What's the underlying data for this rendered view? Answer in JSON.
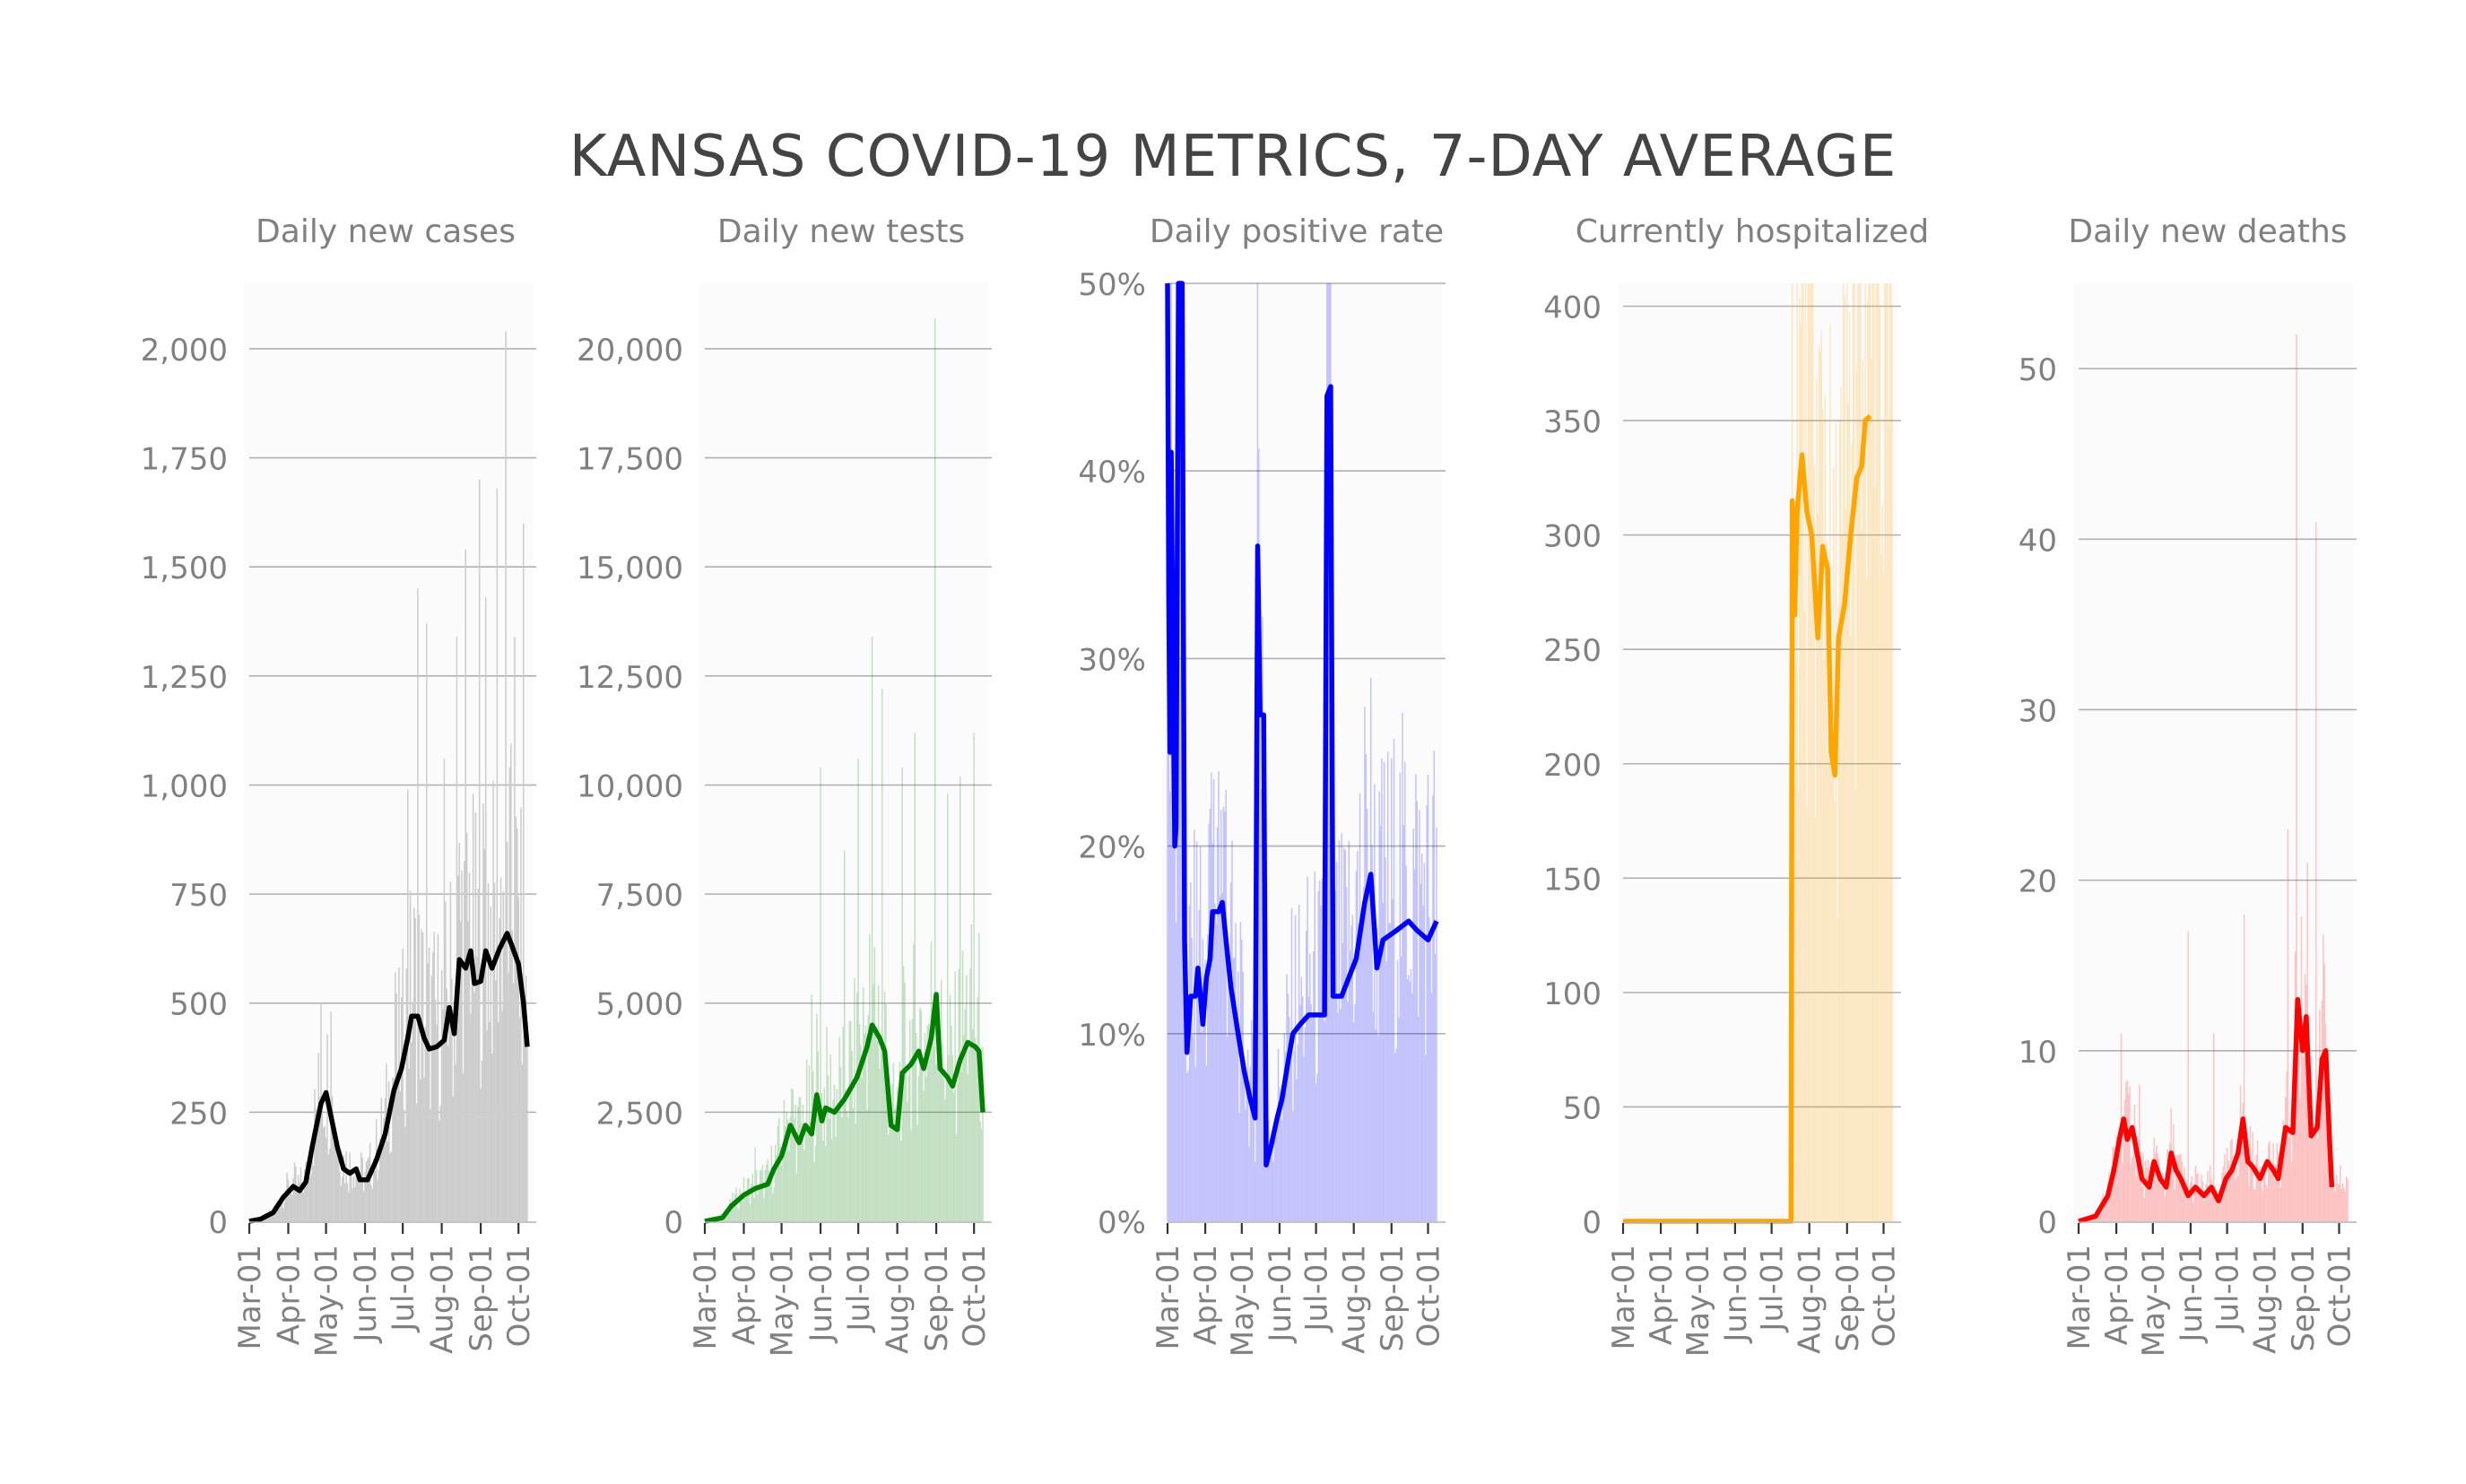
{
  "title": "KANSAS COVID-19 METRICS, 7-DAY AVERAGE",
  "colors": {
    "cases": "#000000",
    "tests": "#008000",
    "positive_rate": "#0000ff",
    "hospitalized": "#ffa500",
    "deaths": "#ff0000",
    "grid": "#b0b0b0",
    "text": "#808080",
    "title": "#444444"
  },
  "chart_data": [
    {
      "type": "bar+line",
      "title": "Daily new cases",
      "color": "#000000",
      "ylim": [
        0,
        2150
      ],
      "yticks": [
        0,
        250,
        500,
        750,
        1000,
        1250,
        1500,
        1750,
        2000
      ],
      "ytick_labels": [
        "0",
        "250",
        "500",
        "750",
        "1,000",
        "1,250",
        "1,500",
        "1,750",
        "2,000"
      ],
      "xticks": [
        "Mar-01",
        "Apr-01",
        "May-01",
        "Jun-01",
        "Jul-01",
        "Aug-01",
        "Sep-01",
        "Oct-01"
      ],
      "x_range": [
        "2020-03-01",
        "2020-10-08"
      ],
      "line": [
        [
          "2020-03-01",
          0
        ],
        [
          "2020-03-10",
          5
        ],
        [
          "2020-03-20",
          20
        ],
        [
          "2020-03-28",
          55
        ],
        [
          "2020-04-05",
          80
        ],
        [
          "2020-04-10",
          70
        ],
        [
          "2020-04-15",
          90
        ],
        [
          "2020-04-20",
          170
        ],
        [
          "2020-04-27",
          270
        ],
        [
          "2020-05-01",
          295
        ],
        [
          "2020-05-05",
          240
        ],
        [
          "2020-05-10",
          170
        ],
        [
          "2020-05-15",
          120
        ],
        [
          "2020-05-20",
          110
        ],
        [
          "2020-05-25",
          120
        ],
        [
          "2020-05-28",
          95
        ],
        [
          "2020-06-03",
          95
        ],
        [
          "2020-06-10",
          140
        ],
        [
          "2020-06-17",
          200
        ],
        [
          "2020-06-24",
          300
        ],
        [
          "2020-06-30",
          350
        ],
        [
          "2020-07-05",
          420
        ],
        [
          "2020-07-08",
          470
        ],
        [
          "2020-07-13",
          470
        ],
        [
          "2020-07-18",
          420
        ],
        [
          "2020-07-22",
          395
        ],
        [
          "2020-07-28",
          400
        ],
        [
          "2020-08-03",
          415
        ],
        [
          "2020-08-07",
          490
        ],
        [
          "2020-08-11",
          430
        ],
        [
          "2020-08-15",
          600
        ],
        [
          "2020-08-20",
          580
        ],
        [
          "2020-08-24",
          620
        ],
        [
          "2020-08-27",
          545
        ],
        [
          "2020-09-01",
          550
        ],
        [
          "2020-09-05",
          620
        ],
        [
          "2020-09-10",
          580
        ],
        [
          "2020-09-16",
          625
        ],
        [
          "2020-09-22",
          660
        ],
        [
          "2020-09-26",
          630
        ],
        [
          "2020-10-01",
          590
        ],
        [
          "2020-10-05",
          500
        ],
        [
          "2020-10-08",
          400
        ]
      ],
      "bars_peak": [
        [
          "2020-04-27",
          500
        ],
        [
          "2020-05-05",
          480
        ],
        [
          "2020-06-25",
          570
        ],
        [
          "2020-07-05",
          990
        ],
        [
          "2020-07-13",
          1450
        ],
        [
          "2020-07-20",
          1370
        ],
        [
          "2020-08-03",
          1060
        ],
        [
          "2020-08-13",
          1340
        ],
        [
          "2020-08-20",
          1540
        ],
        [
          "2020-08-31",
          1700
        ],
        [
          "2020-09-05",
          1430
        ],
        [
          "2020-09-14",
          1680
        ],
        [
          "2020-09-21",
          2040
        ],
        [
          "2020-09-28",
          1340
        ],
        [
          "2020-10-05",
          1600
        ]
      ]
    },
    {
      "type": "bar+line",
      "title": "Daily new tests",
      "color": "#008000",
      "ylim": [
        0,
        21500
      ],
      "yticks": [
        0,
        2500,
        5000,
        7500,
        10000,
        12500,
        15000,
        17500,
        20000
      ],
      "ytick_labels": [
        "0",
        "2,500",
        "5,000",
        "7,500",
        "10,000",
        "12,500",
        "15,000",
        "17,500",
        "20,000"
      ],
      "xticks": [
        "Mar-01",
        "Apr-01",
        "May-01",
        "Jun-01",
        "Jul-01",
        "Aug-01",
        "Sep-01",
        "Oct-01"
      ],
      "x_range": [
        "2020-03-01",
        "2020-10-08"
      ],
      "line": [
        [
          "2020-03-01",
          0
        ],
        [
          "2020-03-15",
          80
        ],
        [
          "2020-03-22",
          350
        ],
        [
          "2020-04-01",
          600
        ],
        [
          "2020-04-10",
          750
        ],
        [
          "2020-04-20",
          850
        ],
        [
          "2020-04-25",
          1200
        ],
        [
          "2020-05-01",
          1500
        ],
        [
          "2020-05-08",
          2200
        ],
        [
          "2020-05-15",
          1800
        ],
        [
          "2020-05-20",
          2200
        ],
        [
          "2020-05-25",
          2000
        ],
        [
          "2020-05-29",
          2900
        ],
        [
          "2020-06-02",
          2300
        ],
        [
          "2020-06-05",
          2600
        ],
        [
          "2020-06-12",
          2500
        ],
        [
          "2020-06-20",
          2800
        ],
        [
          "2020-06-30",
          3300
        ],
        [
          "2020-07-08",
          4000
        ],
        [
          "2020-07-12",
          4500
        ],
        [
          "2020-07-18",
          4200
        ],
        [
          "2020-07-22",
          3900
        ],
        [
          "2020-07-27",
          2200
        ],
        [
          "2020-08-01",
          2100
        ],
        [
          "2020-08-05",
          3400
        ],
        [
          "2020-08-12",
          3600
        ],
        [
          "2020-08-18",
          3900
        ],
        [
          "2020-08-22",
          3500
        ],
        [
          "2020-08-28",
          4200
        ],
        [
          "2020-09-01",
          5200
        ],
        [
          "2020-09-04",
          3500
        ],
        [
          "2020-09-10",
          3300
        ],
        [
          "2020-09-14",
          3100
        ],
        [
          "2020-09-20",
          3700
        ],
        [
          "2020-09-26",
          4100
        ],
        [
          "2020-10-02",
          4000
        ],
        [
          "2020-10-05",
          3900
        ],
        [
          "2020-10-08",
          2500
        ]
      ],
      "bars_peak": [
        [
          "2020-04-10",
          1700
        ],
        [
          "2020-05-05",
          2500
        ],
        [
          "2020-05-25",
          5200
        ],
        [
          "2020-06-01",
          10400
        ],
        [
          "2020-06-20",
          8500
        ],
        [
          "2020-07-01",
          10600
        ],
        [
          "2020-07-12",
          13400
        ],
        [
          "2020-07-20",
          12200
        ],
        [
          "2020-08-05",
          10400
        ],
        [
          "2020-08-15",
          11200
        ],
        [
          "2020-08-31",
          20700
        ],
        [
          "2020-09-10",
          9800
        ],
        [
          "2020-09-20",
          10200
        ],
        [
          "2020-10-01",
          11200
        ]
      ]
    },
    {
      "type": "bar+line",
      "title": "Daily positive rate",
      "color": "#0000ff",
      "ylim": [
        0,
        0.5
      ],
      "yticks": [
        0,
        0.1,
        0.2,
        0.3,
        0.4,
        0.5
      ],
      "ytick_labels": [
        "0%",
        "10%",
        "20%",
        "30%",
        "40%",
        "50%"
      ],
      "xticks": [
        "Mar-01",
        "Apr-01",
        "May-01",
        "Jun-01",
        "Jul-01",
        "Aug-01",
        "Sep-01",
        "Oct-01"
      ],
      "x_range": [
        "2020-03-01",
        "2020-10-08"
      ],
      "line": [
        [
          "2020-03-01",
          0.5
        ],
        [
          "2020-03-02",
          0.33
        ],
        [
          "2020-03-03",
          0.25
        ],
        [
          "2020-03-04",
          0.41
        ],
        [
          "2020-03-06",
          0.26
        ],
        [
          "2020-03-07",
          0.2
        ],
        [
          "2020-03-08",
          0.21
        ],
        [
          "2020-03-10",
          0.5
        ],
        [
          "2020-03-13",
          0.5
        ],
        [
          "2020-03-15",
          0.15
        ],
        [
          "2020-03-17",
          0.09
        ],
        [
          "2020-03-20",
          0.12
        ],
        [
          "2020-03-24",
          0.12
        ],
        [
          "2020-03-26",
          0.135
        ],
        [
          "2020-03-28",
          0.12
        ],
        [
          "2020-03-30",
          0.105
        ],
        [
          "2020-04-02",
          0.13
        ],
        [
          "2020-04-05",
          0.14
        ],
        [
          "2020-04-07",
          0.165
        ],
        [
          "2020-04-12",
          0.165
        ],
        [
          "2020-04-15",
          0.17
        ],
        [
          "2020-04-18",
          0.15
        ],
        [
          "2020-04-22",
          0.125
        ],
        [
          "2020-04-28",
          0.1
        ],
        [
          "2020-05-03",
          0.08
        ],
        [
          "2020-05-08",
          0.065
        ],
        [
          "2020-05-12",
          0.055
        ],
        [
          "2020-05-14",
          0.36
        ],
        [
          "2020-05-16",
          0.27
        ],
        [
          "2020-05-19",
          0.27
        ],
        [
          "2020-05-21",
          0.03
        ],
        [
          "2020-05-25",
          0.04
        ],
        [
          "2020-05-30",
          0.055
        ],
        [
          "2020-06-03",
          0.065
        ],
        [
          "2020-06-08",
          0.085
        ],
        [
          "2020-06-12",
          0.1
        ],
        [
          "2020-06-18",
          0.105
        ],
        [
          "2020-06-25",
          0.11
        ],
        [
          "2020-07-03",
          0.11
        ],
        [
          "2020-07-08",
          0.11
        ],
        [
          "2020-07-10",
          0.44
        ],
        [
          "2020-07-13",
          0.445
        ],
        [
          "2020-07-15",
          0.12
        ],
        [
          "2020-07-22",
          0.12
        ],
        [
          "2020-07-28",
          0.13
        ],
        [
          "2020-08-03",
          0.14
        ],
        [
          "2020-08-10",
          0.17
        ],
        [
          "2020-08-15",
          0.185
        ],
        [
          "2020-08-20",
          0.135
        ],
        [
          "2020-08-25",
          0.15
        ],
        [
          "2020-09-05",
          0.155
        ],
        [
          "2020-09-15",
          0.16
        ],
        [
          "2020-09-22",
          0.155
        ],
        [
          "2020-10-01",
          0.15
        ],
        [
          "2020-10-08",
          0.16
        ]
      ],
      "bars_peak": [
        [
          "2020-03-04",
          0.5
        ],
        [
          "2020-03-28",
          0.2
        ],
        [
          "2020-04-05",
          0.22
        ],
        [
          "2020-04-12",
          0.24
        ],
        [
          "2020-04-18",
          0.23
        ],
        [
          "2020-05-14",
          0.5
        ],
        [
          "2020-06-20",
          0.12
        ],
        [
          "2020-07-10",
          0.5
        ],
        [
          "2020-08-12",
          0.22
        ],
        [
          "2020-08-25",
          0.17
        ],
        [
          "2020-09-25",
          0.18
        ]
      ]
    },
    {
      "type": "bar+line",
      "title": "Currently hospitalized",
      "color": "#ffa500",
      "ylim": [
        0,
        410
      ],
      "yticks": [
        0,
        50,
        100,
        150,
        200,
        250,
        300,
        350,
        400
      ],
      "ytick_labels": [
        "0",
        "50",
        "100",
        "150",
        "200",
        "250",
        "300",
        "350",
        "400"
      ],
      "xticks": [
        "Mar-01",
        "Apr-01",
        "May-01",
        "Jun-01",
        "Jul-01",
        "Aug-01",
        "Sep-01",
        "Oct-01"
      ],
      "x_range": [
        "2020-03-01",
        "2020-10-08"
      ],
      "line": [
        [
          "2020-03-01",
          0
        ],
        [
          "2020-07-17",
          0
        ],
        [
          "2020-07-18",
          315
        ],
        [
          "2020-07-20",
          265
        ],
        [
          "2020-07-22",
          310
        ],
        [
          "2020-07-26",
          335
        ],
        [
          "2020-07-30",
          310
        ],
        [
          "2020-08-03",
          300
        ],
        [
          "2020-08-08",
          255
        ],
        [
          "2020-08-12",
          295
        ],
        [
          "2020-08-16",
          285
        ],
        [
          "2020-08-19",
          205
        ],
        [
          "2020-08-22",
          195
        ],
        [
          "2020-08-25",
          255
        ],
        [
          "2020-08-30",
          270
        ],
        [
          "2020-09-04",
          300
        ],
        [
          "2020-09-09",
          325
        ],
        [
          "2020-09-13",
          330
        ],
        [
          "2020-09-16",
          350
        ],
        [
          "2020-09-20",
          352
        ]
      ],
      "bars_peak": [
        [
          "2020-07-20",
          310
        ],
        [
          "2020-07-25",
          392
        ],
        [
          "2020-08-05",
          330
        ],
        [
          "2020-08-12",
          355
        ],
        [
          "2020-08-20",
          210
        ],
        [
          "2020-08-28",
          300
        ],
        [
          "2020-09-05",
          340
        ],
        [
          "2020-09-15",
          352
        ]
      ]
    },
    {
      "type": "bar+line",
      "title": "Daily new deaths",
      "color": "#ff0000",
      "ylim": [
        0,
        55
      ],
      "yticks": [
        0,
        10,
        20,
        30,
        40,
        50
      ],
      "ytick_labels": [
        "0",
        "10",
        "20",
        "30",
        "40",
        "50"
      ],
      "xticks": [
        "Mar-01",
        "Apr-01",
        "May-01",
        "Jun-01",
        "Jul-01",
        "Aug-01",
        "Sep-01",
        "Oct-01"
      ],
      "x_range": [
        "2020-03-01",
        "2020-10-08"
      ],
      "line": [
        [
          "2020-03-01",
          0
        ],
        [
          "2020-03-15",
          0.3
        ],
        [
          "2020-03-25",
          1.5
        ],
        [
          "2020-03-30",
          3
        ],
        [
          "2020-04-04",
          5
        ],
        [
          "2020-04-07",
          6
        ],
        [
          "2020-04-10",
          4.8
        ],
        [
          "2020-04-14",
          5.5
        ],
        [
          "2020-04-18",
          4
        ],
        [
          "2020-04-22",
          2.5
        ],
        [
          "2020-04-28",
          2
        ],
        [
          "2020-05-02",
          3.5
        ],
        [
          "2020-05-07",
          2.5
        ],
        [
          "2020-05-12",
          2
        ],
        [
          "2020-05-16",
          4
        ],
        [
          "2020-05-20",
          3
        ],
        [
          "2020-05-24",
          2.5
        ],
        [
          "2020-05-30",
          1.5
        ],
        [
          "2020-06-05",
          2
        ],
        [
          "2020-06-12",
          1.5
        ],
        [
          "2020-06-18",
          2
        ],
        [
          "2020-06-24",
          1.2
        ],
        [
          "2020-06-30",
          2.5
        ],
        [
          "2020-07-05",
          3
        ],
        [
          "2020-07-10",
          4
        ],
        [
          "2020-07-14",
          6
        ],
        [
          "2020-07-18",
          3.5
        ],
        [
          "2020-07-22",
          3.2
        ],
        [
          "2020-07-28",
          2.5
        ],
        [
          "2020-08-03",
          3.5
        ],
        [
          "2020-08-08",
          3
        ],
        [
          "2020-08-12",
          2.5
        ],
        [
          "2020-08-18",
          5.5
        ],
        [
          "2020-08-24",
          5.2
        ],
        [
          "2020-08-28",
          13
        ],
        [
          "2020-09-01",
          10
        ],
        [
          "2020-09-04",
          12
        ],
        [
          "2020-09-08",
          5
        ],
        [
          "2020-09-13",
          5.5
        ],
        [
          "2020-09-17",
          9.5
        ],
        [
          "2020-09-20",
          10
        ],
        [
          "2020-09-23",
          5
        ],
        [
          "2020-09-25",
          2
        ]
      ],
      "bars_peak": [
        [
          "2020-04-05",
          11
        ],
        [
          "2020-04-20",
          8
        ],
        [
          "2020-05-30",
          17
        ],
        [
          "2020-06-20",
          11
        ],
        [
          "2020-07-15",
          18
        ],
        [
          "2020-08-20",
          23
        ],
        [
          "2020-08-27",
          52
        ],
        [
          "2020-09-05",
          21
        ],
        [
          "2020-09-12",
          41
        ]
      ]
    }
  ]
}
